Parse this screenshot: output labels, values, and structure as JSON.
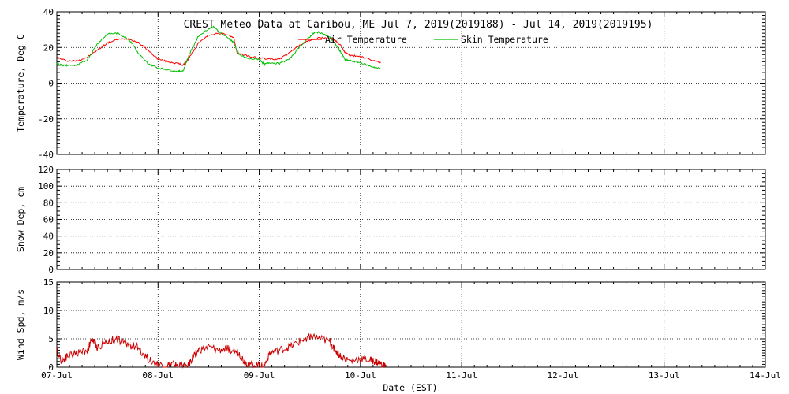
{
  "chart_data": [
    {
      "type": "line",
      "title": "CREST Meteo Data at Caribou, ME   Jul  7, 2019(2019188) - Jul 14, 2019(2019195)",
      "xlabel": "",
      "ylabel": "Temperature, Deg C",
      "xlim": [
        "07-Jul",
        "14-Jul"
      ],
      "ylim": [
        -40,
        40
      ],
      "yticks": [
        -40,
        -20,
        0,
        20,
        40
      ],
      "grid": true,
      "legend_position": "top-center",
      "series": [
        {
          "name": "Air Temperature",
          "color": "#ff0000",
          "x_days": [
            7.0,
            7.1,
            7.2,
            7.3,
            7.4,
            7.5,
            7.6,
            7.7,
            7.8,
            7.9,
            8.0,
            8.1,
            8.2,
            8.25,
            8.3,
            8.4,
            8.5,
            8.6,
            8.7,
            8.75,
            8.78,
            8.9,
            9.0,
            9.1,
            9.2,
            9.3,
            9.4,
            9.5,
            9.6,
            9.7,
            9.75,
            9.8,
            9.85,
            9.9,
            10.0,
            10.1,
            10.2
          ],
          "values": [
            14.5,
            12.5,
            12.5,
            14.5,
            18.5,
            22.5,
            24.5,
            25.0,
            23.0,
            18.5,
            13.5,
            12.0,
            11.0,
            10.0,
            13.5,
            22.5,
            27.0,
            28.0,
            27.0,
            25.0,
            17.0,
            15.0,
            14.0,
            13.5,
            13.5,
            17.0,
            21.5,
            24.0,
            25.5,
            25.0,
            24.0,
            21.5,
            17.0,
            15.5,
            15.0,
            13.0,
            11.5
          ]
        },
        {
          "name": "Skin Temperature",
          "color": "#00c000",
          "x_days": [
            7.0,
            7.05,
            7.1,
            7.2,
            7.3,
            7.4,
            7.5,
            7.6,
            7.7,
            7.75,
            7.8,
            7.9,
            8.0,
            8.1,
            8.2,
            8.25,
            8.3,
            8.4,
            8.5,
            8.55,
            8.6,
            8.7,
            8.75,
            8.8,
            8.9,
            9.0,
            9.05,
            9.1,
            9.2,
            9.3,
            9.4,
            9.5,
            9.55,
            9.6,
            9.7,
            9.75,
            9.8,
            9.85,
            9.9,
            10.0,
            10.1,
            10.2
          ],
          "values": [
            11.0,
            10.0,
            10.0,
            10.0,
            13.0,
            22.0,
            27.5,
            28.0,
            25.0,
            22.0,
            17.0,
            11.0,
            8.5,
            7.5,
            6.5,
            7.0,
            15.0,
            26.5,
            30.5,
            31.5,
            29.0,
            25.0,
            22.5,
            16.0,
            13.5,
            13.5,
            10.5,
            11.5,
            11.0,
            13.5,
            20.5,
            26.0,
            28.5,
            28.5,
            25.5,
            22.0,
            18.0,
            13.0,
            12.5,
            11.5,
            9.5,
            8.0
          ]
        }
      ]
    },
    {
      "type": "line",
      "title": "",
      "xlabel": "",
      "ylabel": "Snow Dep, cm",
      "xlim": [
        "07-Jul",
        "14-Jul"
      ],
      "ylim": [
        0,
        120
      ],
      "yticks": [
        0,
        20,
        40,
        60,
        80,
        100,
        120
      ],
      "grid": true,
      "series": []
    },
    {
      "type": "line",
      "title": "",
      "xlabel": "Date (EST)",
      "ylabel": "Wind Spd, m/s",
      "xlim": [
        "07-Jul",
        "14-Jul"
      ],
      "ylim": [
        0,
        15
      ],
      "yticks": [
        0,
        5,
        10,
        15
      ],
      "xticks": [
        "07-Jul",
        "08-Jul",
        "09-Jul",
        "10-Jul",
        "11-Jul",
        "12-Jul",
        "13-Jul",
        "14-Jul"
      ],
      "grid": true,
      "series": [
        {
          "name": "",
          "color": "#cc0000",
          "x_days": [
            7.0,
            7.05,
            7.1,
            7.2,
            7.3,
            7.35,
            7.4,
            7.5,
            7.6,
            7.7,
            7.8,
            7.9,
            8.0,
            8.1,
            8.15,
            8.2,
            8.3,
            8.35,
            8.4,
            8.5,
            8.6,
            8.7,
            8.8,
            8.85,
            8.9,
            9.0,
            9.05,
            9.1,
            9.2,
            9.3,
            9.4,
            9.5,
            9.6,
            9.7,
            9.75,
            9.8,
            9.9,
            10.0,
            10.1,
            10.15,
            10.2,
            10.25
          ],
          "values": [
            3.0,
            1.0,
            2.0,
            2.5,
            3.0,
            5.0,
            3.5,
            4.5,
            5.0,
            4.0,
            3.5,
            1.5,
            0.5,
            0.3,
            0.5,
            0.2,
            0.3,
            2.0,
            3.0,
            3.5,
            3.0,
            3.2,
            2.5,
            1.0,
            0.5,
            0.3,
            0.2,
            2.5,
            3.0,
            3.5,
            4.5,
            5.5,
            5.0,
            4.5,
            3.0,
            2.0,
            1.0,
            1.5,
            1.2,
            1.0,
            0.5,
            0.2
          ]
        }
      ]
    }
  ]
}
